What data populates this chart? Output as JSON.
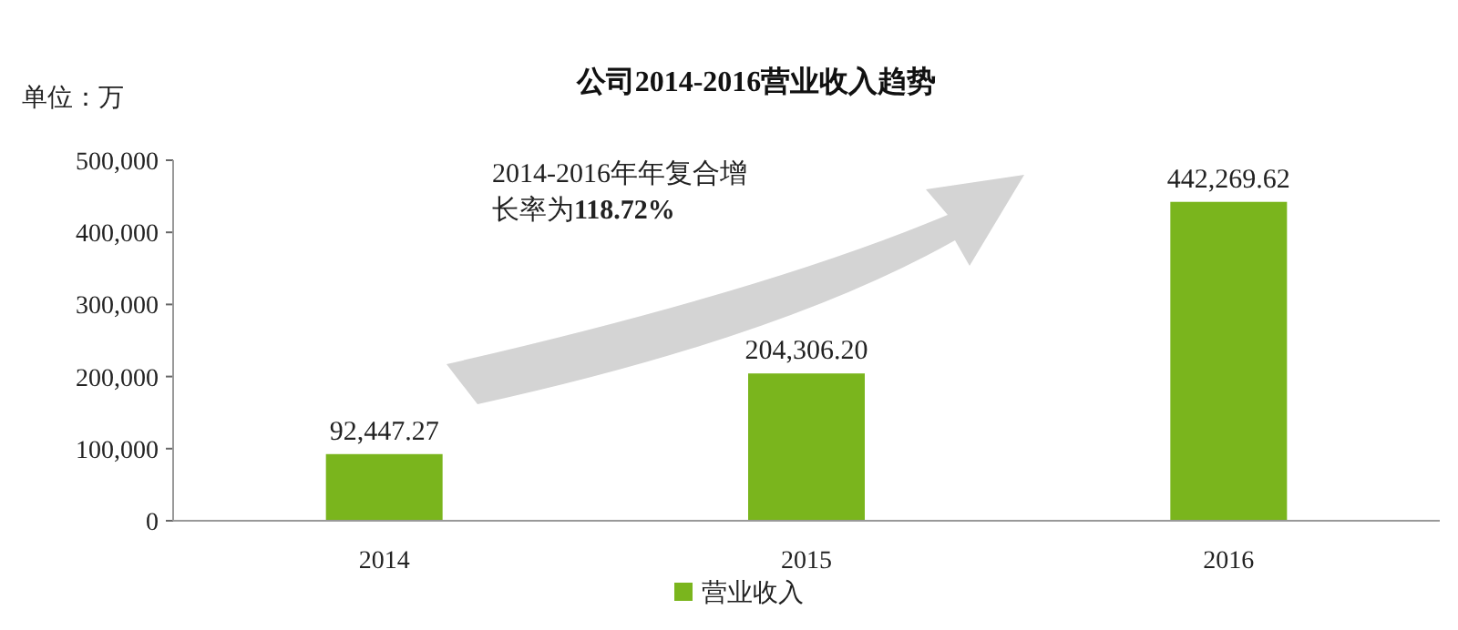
{
  "chart_data": {
    "type": "bar",
    "title": "公司2014-2016营业收入趋势",
    "ylabel": "单位：万",
    "categories": [
      "2014",
      "2015",
      "2016"
    ],
    "series": [
      {
        "name": "营业收入",
        "color": "#7ab51d",
        "values": [
          92447.27,
          204306.2,
          442269.62
        ],
        "value_labels": [
          "92,447.27",
          "204,306.20",
          "442,269.62"
        ]
      }
    ],
    "ylim": [
      0,
      500000
    ],
    "yticks": [
      0,
      {
        "value": 100000,
        "label": "100,000"
      },
      {
        "value": 200000,
        "label": "200,000"
      },
      {
        "value": 300000,
        "label": "300,000"
      },
      {
        "value": 400000,
        "label": "400,000"
      },
      {
        "value": 500000,
        "label": "500,000"
      }
    ],
    "annotations": [
      "2014-2016年年复合增长率为**118.72%**"
    ],
    "legend": "bottom",
    "grid": false
  }
}
